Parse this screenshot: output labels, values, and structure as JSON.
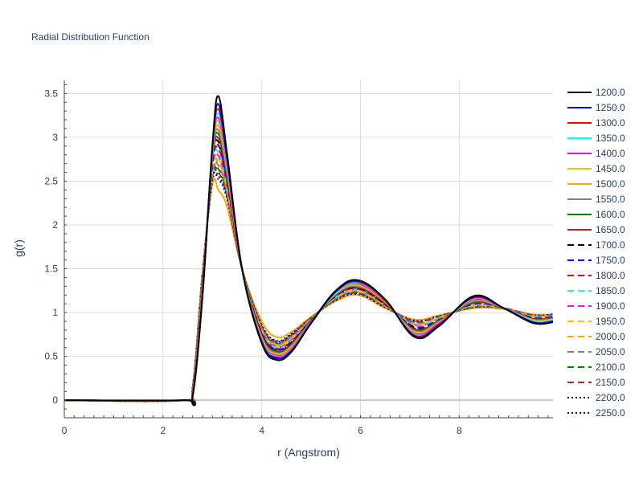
{
  "chart_data": {
    "type": "line",
    "title": "Radial Distribution Function",
    "xlabel": "r (Angstrom)",
    "ylabel": "g(r)",
    "xlim": [
      0,
      9.9
    ],
    "ylim": [
      -0.2,
      3.65
    ],
    "x_ticks": [
      0,
      2,
      4,
      6,
      8
    ],
    "x_tick_labels": [
      "0",
      "2",
      "4",
      "6",
      "8"
    ],
    "y_ticks": [
      0,
      0.5,
      1,
      1.5,
      2,
      2.5,
      3,
      3.5
    ],
    "y_tick_labels": [
      "0",
      "0.5",
      "1",
      "1.5",
      "2",
      "2.5",
      "3",
      "3.5"
    ],
    "grid": true,
    "legend_position": "right",
    "x_keypoints": [
      0,
      2.4,
      2.6,
      2.8,
      3.0,
      3.12,
      3.3,
      3.6,
      4.0,
      4.3,
      4.6,
      5.0,
      5.5,
      5.95,
      6.5,
      7.1,
      7.6,
      8.3,
      8.9,
      9.5,
      9.9
    ],
    "series": [
      {
        "name": "1200.0",
        "color": "#000000",
        "dash": "solid",
        "values": [
          0,
          0,
          0.05,
          1.2,
          2.9,
          3.47,
          2.8,
          1.5,
          0.65,
          0.46,
          0.55,
          0.88,
          1.25,
          1.37,
          1.15,
          0.72,
          0.85,
          1.19,
          1.05,
          0.88,
          0.89
        ]
      },
      {
        "name": "1250.0",
        "color": "#0000ff",
        "dash": "solid",
        "values": [
          0,
          0,
          0.05,
          1.2,
          2.88,
          3.38,
          2.75,
          1.5,
          0.66,
          0.48,
          0.56,
          0.88,
          1.24,
          1.36,
          1.15,
          0.73,
          0.86,
          1.18,
          1.05,
          0.89,
          0.9
        ]
      },
      {
        "name": "1300.0",
        "color": "#ff0000",
        "dash": "solid",
        "values": [
          0,
          0,
          0.06,
          1.22,
          2.87,
          3.32,
          2.73,
          1.5,
          0.67,
          0.49,
          0.57,
          0.88,
          1.24,
          1.35,
          1.14,
          0.74,
          0.87,
          1.17,
          1.05,
          0.89,
          0.9
        ]
      },
      {
        "name": "1350.0",
        "color": "#00ffff",
        "dash": "solid",
        "values": [
          0,
          0,
          0.06,
          1.23,
          2.85,
          3.27,
          2.7,
          1.5,
          0.68,
          0.5,
          0.58,
          0.88,
          1.23,
          1.34,
          1.14,
          0.75,
          0.87,
          1.16,
          1.05,
          0.9,
          0.91
        ]
      },
      {
        "name": "1400.0",
        "color": "#ff00ff",
        "dash": "solid",
        "values": [
          0,
          0,
          0.07,
          1.25,
          2.83,
          3.22,
          2.67,
          1.5,
          0.69,
          0.51,
          0.59,
          0.89,
          1.23,
          1.33,
          1.13,
          0.76,
          0.88,
          1.15,
          1.05,
          0.9,
          0.91
        ]
      },
      {
        "name": "1450.0",
        "color": "#ffbf00",
        "dash": "solid",
        "values": [
          0,
          0,
          0.07,
          1.26,
          2.82,
          3.18,
          2.65,
          1.5,
          0.7,
          0.52,
          0.6,
          0.89,
          1.22,
          1.32,
          1.13,
          0.77,
          0.88,
          1.15,
          1.05,
          0.91,
          0.92
        ]
      },
      {
        "name": "1500.0",
        "color": "#ffa500",
        "dash": "solid",
        "values": [
          0,
          0,
          0.08,
          1.28,
          2.8,
          3.13,
          2.62,
          1.5,
          0.71,
          0.53,
          0.61,
          0.89,
          1.22,
          1.31,
          1.12,
          0.78,
          0.89,
          1.14,
          1.05,
          0.91,
          0.92
        ]
      },
      {
        "name": "1550.0",
        "color": "#808080",
        "dash": "solid",
        "values": [
          0,
          0,
          0.08,
          1.29,
          2.78,
          3.08,
          2.59,
          1.5,
          0.72,
          0.54,
          0.62,
          0.9,
          1.21,
          1.3,
          1.12,
          0.79,
          0.9,
          1.13,
          1.05,
          0.92,
          0.93
        ]
      },
      {
        "name": "1600.0",
        "color": "#008000",
        "dash": "solid",
        "values": [
          0,
          0,
          0.09,
          1.3,
          2.76,
          3.04,
          2.57,
          1.5,
          0.73,
          0.55,
          0.63,
          0.9,
          1.21,
          1.3,
          1.11,
          0.8,
          0.9,
          1.12,
          1.05,
          0.92,
          0.93
        ]
      },
      {
        "name": "1650.0",
        "color": "#a52a2a",
        "dash": "solid",
        "values": [
          0,
          0,
          0.09,
          1.32,
          2.74,
          2.99,
          2.54,
          1.5,
          0.74,
          0.56,
          0.64,
          0.9,
          1.2,
          1.29,
          1.11,
          0.81,
          0.91,
          1.11,
          1.05,
          0.93,
          0.94
        ]
      },
      {
        "name": "1700.0",
        "color": "#000000",
        "dash": "dash",
        "values": [
          0,
          0,
          0.1,
          1.33,
          2.72,
          2.95,
          2.52,
          1.5,
          0.75,
          0.57,
          0.65,
          0.91,
          1.2,
          1.28,
          1.1,
          0.82,
          0.91,
          1.11,
          1.05,
          0.93,
          0.94
        ]
      },
      {
        "name": "1750.0",
        "color": "#0000ff",
        "dash": "dash",
        "values": [
          0,
          0,
          0.1,
          1.35,
          2.7,
          2.91,
          2.5,
          1.5,
          0.76,
          0.58,
          0.66,
          0.91,
          1.19,
          1.28,
          1.1,
          0.83,
          0.92,
          1.1,
          1.05,
          0.94,
          0.95
        ]
      },
      {
        "name": "1800.0",
        "color": "#ff0000",
        "dash": "dash",
        "values": [
          0,
          0,
          0.11,
          1.36,
          2.68,
          2.87,
          2.47,
          1.5,
          0.77,
          0.59,
          0.67,
          0.91,
          1.19,
          1.27,
          1.09,
          0.84,
          0.92,
          1.1,
          1.05,
          0.94,
          0.95
        ]
      },
      {
        "name": "1850.0",
        "color": "#00ffff",
        "dash": "dash",
        "values": [
          0,
          0,
          0.11,
          1.37,
          2.66,
          2.83,
          2.45,
          1.5,
          0.78,
          0.6,
          0.68,
          0.92,
          1.18,
          1.26,
          1.09,
          0.85,
          0.93,
          1.09,
          1.05,
          0.95,
          0.96
        ]
      },
      {
        "name": "1900.0",
        "color": "#ff00ff",
        "dash": "dash",
        "values": [
          0,
          0,
          0.12,
          1.38,
          2.64,
          2.79,
          2.43,
          1.5,
          0.79,
          0.61,
          0.69,
          0.92,
          1.18,
          1.26,
          1.09,
          0.86,
          0.93,
          1.09,
          1.05,
          0.95,
          0.96
        ]
      },
      {
        "name": "1950.0",
        "color": "#ffbf00",
        "dash": "dash",
        "values": [
          0,
          0,
          0.12,
          1.4,
          2.62,
          2.76,
          2.41,
          1.5,
          0.8,
          0.62,
          0.7,
          0.92,
          1.17,
          1.25,
          1.08,
          0.86,
          0.94,
          1.08,
          1.05,
          0.95,
          0.96
        ]
      },
      {
        "name": "2000.0",
        "color": "#ffa500",
        "dash": "dash",
        "values": [
          0,
          0,
          0.13,
          1.41,
          2.6,
          2.72,
          2.39,
          1.5,
          0.81,
          0.63,
          0.71,
          0.93,
          1.17,
          1.24,
          1.08,
          0.87,
          0.94,
          1.08,
          1.05,
          0.96,
          0.97
        ]
      },
      {
        "name": "2050.0",
        "color": "#808080",
        "dash": "dash",
        "values": [
          0,
          0,
          0.13,
          1.42,
          2.58,
          2.68,
          2.37,
          1.5,
          0.82,
          0.64,
          0.72,
          0.93,
          1.16,
          1.24,
          1.07,
          0.88,
          0.95,
          1.07,
          1.05,
          0.96,
          0.97
        ]
      },
      {
        "name": "2100.0",
        "color": "#008000",
        "dash": "dash",
        "values": [
          0,
          0,
          0.14,
          1.43,
          2.56,
          2.64,
          2.35,
          1.5,
          0.83,
          0.65,
          0.73,
          0.93,
          1.16,
          1.23,
          1.07,
          0.89,
          0.95,
          1.07,
          1.05,
          0.96,
          0.97
        ]
      },
      {
        "name": "2150.0",
        "color": "#a52a2a",
        "dash": "dash",
        "values": [
          0,
          0,
          0.14,
          1.44,
          2.54,
          2.6,
          2.33,
          1.5,
          0.84,
          0.66,
          0.74,
          0.94,
          1.15,
          1.22,
          1.07,
          0.9,
          0.96,
          1.06,
          1.05,
          0.97,
          0.97
        ]
      },
      {
        "name": "2200.0",
        "color": "#000000",
        "dash": "dot",
        "values": [
          0,
          0,
          0.15,
          1.45,
          2.52,
          2.56,
          2.31,
          1.5,
          0.85,
          0.67,
          0.75,
          0.94,
          1.15,
          1.22,
          1.06,
          0.9,
          0.96,
          1.06,
          1.05,
          0.97,
          0.98
        ]
      },
      {
        "name": "2250.0",
        "color": "#0000ff",
        "dash": "dot",
        "values": [
          0,
          0,
          0.15,
          1.46,
          2.5,
          2.52,
          2.29,
          1.5,
          0.86,
          0.68,
          0.76,
          0.94,
          1.14,
          1.21,
          1.06,
          0.91,
          0.96,
          1.06,
          1.05,
          0.97,
          0.98
        ]
      },
      {
        "name": "",
        "color": "#ffa500",
        "dash": "solid",
        "values": [
          0,
          0,
          0.16,
          1.47,
          2.46,
          2.4,
          2.2,
          1.5,
          0.9,
          0.72,
          0.78,
          0.95,
          1.13,
          1.2,
          1.05,
          0.92,
          0.97,
          1.05,
          1.04,
          0.98,
          0.98
        ]
      }
    ]
  }
}
